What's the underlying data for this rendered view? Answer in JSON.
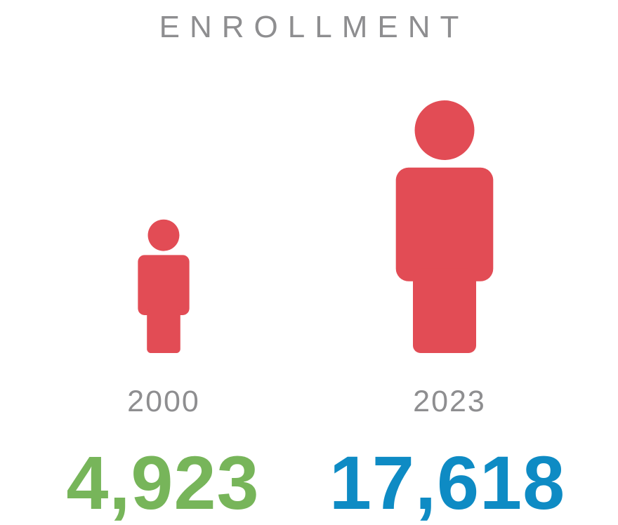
{
  "chart_data": {
    "type": "pictograph",
    "title": "ENROLLMENT",
    "categories": [
      "2000",
      "2023"
    ],
    "series": [
      {
        "values": [
          4923,
          17618
        ]
      }
    ],
    "value_labels": [
      "4,923",
      "17,618"
    ],
    "colors": {
      "figure": "#e24c55",
      "value_2000": "#77b55a",
      "value_2023": "#0e8bc4",
      "text_gray": "#8e8e90"
    }
  }
}
